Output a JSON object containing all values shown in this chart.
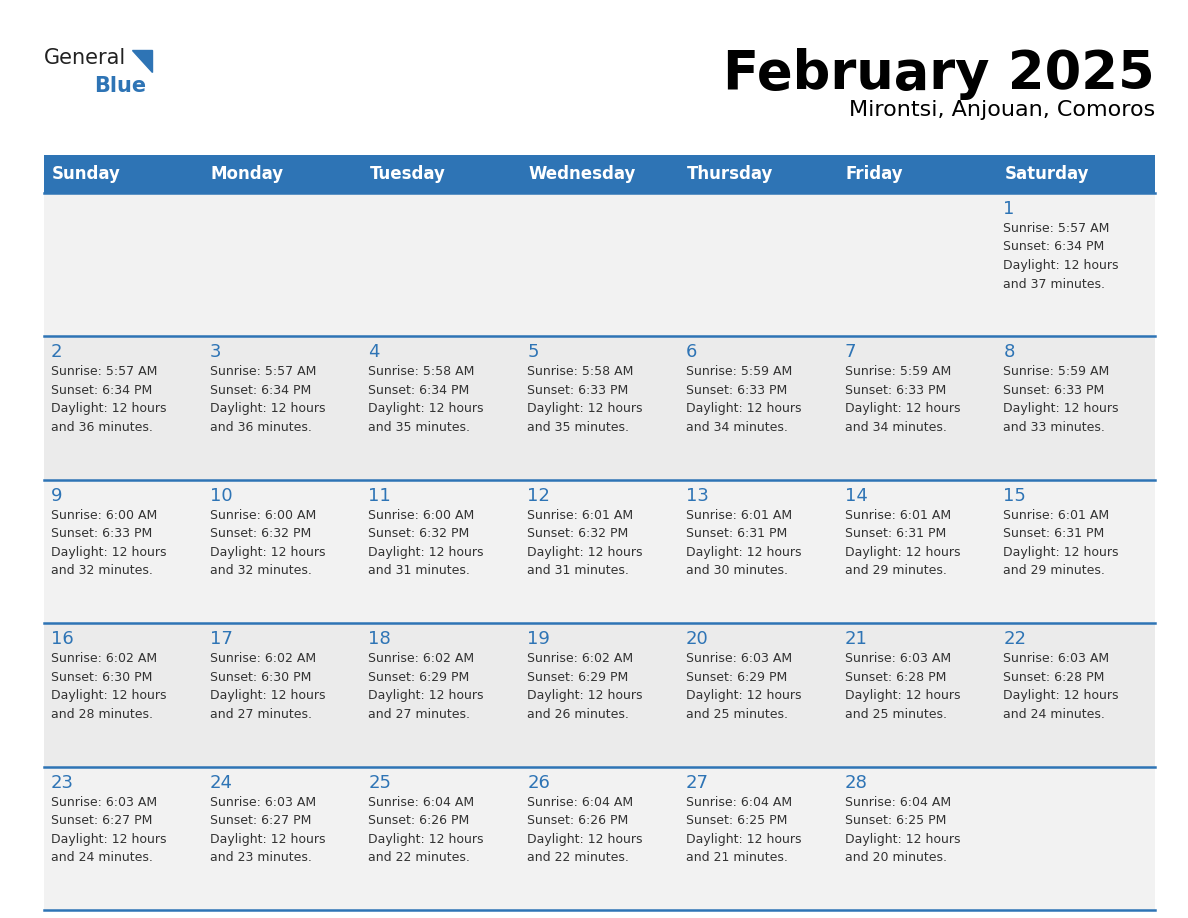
{
  "title": "February 2025",
  "subtitle": "Mirontsi, Anjouan, Comoros",
  "header_bg_color": "#2E74B5",
  "header_text_color": "#FFFFFF",
  "cell_bg_row0": "#F2F2F2",
  "cell_bg_row1": "#EBEBEB",
  "cell_bg_row2": "#F2F2F2",
  "cell_bg_row3": "#EBEBEB",
  "cell_bg_row4": "#F2F2F2",
  "day_number_color": "#2E74B5",
  "text_color": "#333333",
  "line_color": "#2E74B5",
  "days_of_week": [
    "Sunday",
    "Monday",
    "Tuesday",
    "Wednesday",
    "Thursday",
    "Friday",
    "Saturday"
  ],
  "calendar_data": [
    [
      null,
      null,
      null,
      null,
      null,
      null,
      1
    ],
    [
      2,
      3,
      4,
      5,
      6,
      7,
      8
    ],
    [
      9,
      10,
      11,
      12,
      13,
      14,
      15
    ],
    [
      16,
      17,
      18,
      19,
      20,
      21,
      22
    ],
    [
      23,
      24,
      25,
      26,
      27,
      28,
      null
    ]
  ],
  "day_info": {
    "1": {
      "sunrise": "5:57 AM",
      "sunset": "6:34 PM",
      "daylight_h": "12 hours",
      "daylight_m": "37 minutes."
    },
    "2": {
      "sunrise": "5:57 AM",
      "sunset": "6:34 PM",
      "daylight_h": "12 hours",
      "daylight_m": "36 minutes."
    },
    "3": {
      "sunrise": "5:57 AM",
      "sunset": "6:34 PM",
      "daylight_h": "12 hours",
      "daylight_m": "36 minutes."
    },
    "4": {
      "sunrise": "5:58 AM",
      "sunset": "6:34 PM",
      "daylight_h": "12 hours",
      "daylight_m": "35 minutes."
    },
    "5": {
      "sunrise": "5:58 AM",
      "sunset": "6:33 PM",
      "daylight_h": "12 hours",
      "daylight_m": "35 minutes."
    },
    "6": {
      "sunrise": "5:59 AM",
      "sunset": "6:33 PM",
      "daylight_h": "12 hours",
      "daylight_m": "34 minutes."
    },
    "7": {
      "sunrise": "5:59 AM",
      "sunset": "6:33 PM",
      "daylight_h": "12 hours",
      "daylight_m": "34 minutes."
    },
    "8": {
      "sunrise": "5:59 AM",
      "sunset": "6:33 PM",
      "daylight_h": "12 hours",
      "daylight_m": "33 minutes."
    },
    "9": {
      "sunrise": "6:00 AM",
      "sunset": "6:33 PM",
      "daylight_h": "12 hours",
      "daylight_m": "32 minutes."
    },
    "10": {
      "sunrise": "6:00 AM",
      "sunset": "6:32 PM",
      "daylight_h": "12 hours",
      "daylight_m": "32 minutes."
    },
    "11": {
      "sunrise": "6:00 AM",
      "sunset": "6:32 PM",
      "daylight_h": "12 hours",
      "daylight_m": "31 minutes."
    },
    "12": {
      "sunrise": "6:01 AM",
      "sunset": "6:32 PM",
      "daylight_h": "12 hours",
      "daylight_m": "31 minutes."
    },
    "13": {
      "sunrise": "6:01 AM",
      "sunset": "6:31 PM",
      "daylight_h": "12 hours",
      "daylight_m": "30 minutes."
    },
    "14": {
      "sunrise": "6:01 AM",
      "sunset": "6:31 PM",
      "daylight_h": "12 hours",
      "daylight_m": "29 minutes."
    },
    "15": {
      "sunrise": "6:01 AM",
      "sunset": "6:31 PM",
      "daylight_h": "12 hours",
      "daylight_m": "29 minutes."
    },
    "16": {
      "sunrise": "6:02 AM",
      "sunset": "6:30 PM",
      "daylight_h": "12 hours",
      "daylight_m": "28 minutes."
    },
    "17": {
      "sunrise": "6:02 AM",
      "sunset": "6:30 PM",
      "daylight_h": "12 hours",
      "daylight_m": "27 minutes."
    },
    "18": {
      "sunrise": "6:02 AM",
      "sunset": "6:29 PM",
      "daylight_h": "12 hours",
      "daylight_m": "27 minutes."
    },
    "19": {
      "sunrise": "6:02 AM",
      "sunset": "6:29 PM",
      "daylight_h": "12 hours",
      "daylight_m": "26 minutes."
    },
    "20": {
      "sunrise": "6:03 AM",
      "sunset": "6:29 PM",
      "daylight_h": "12 hours",
      "daylight_m": "25 minutes."
    },
    "21": {
      "sunrise": "6:03 AM",
      "sunset": "6:28 PM",
      "daylight_h": "12 hours",
      "daylight_m": "25 minutes."
    },
    "22": {
      "sunrise": "6:03 AM",
      "sunset": "6:28 PM",
      "daylight_h": "12 hours",
      "daylight_m": "24 minutes."
    },
    "23": {
      "sunrise": "6:03 AM",
      "sunset": "6:27 PM",
      "daylight_h": "12 hours",
      "daylight_m": "24 minutes."
    },
    "24": {
      "sunrise": "6:03 AM",
      "sunset": "6:27 PM",
      "daylight_h": "12 hours",
      "daylight_m": "23 minutes."
    },
    "25": {
      "sunrise": "6:04 AM",
      "sunset": "6:26 PM",
      "daylight_h": "12 hours",
      "daylight_m": "22 minutes."
    },
    "26": {
      "sunrise": "6:04 AM",
      "sunset": "6:26 PM",
      "daylight_h": "12 hours",
      "daylight_m": "22 minutes."
    },
    "27": {
      "sunrise": "6:04 AM",
      "sunset": "6:25 PM",
      "daylight_h": "12 hours",
      "daylight_m": "21 minutes."
    },
    "28": {
      "sunrise": "6:04 AM",
      "sunset": "6:25 PM",
      "daylight_h": "12 hours",
      "daylight_m": "20 minutes."
    }
  },
  "logo_general_color": "#222222",
  "logo_blue_color": "#2E74B5",
  "logo_triangle_color": "#2E74B5"
}
